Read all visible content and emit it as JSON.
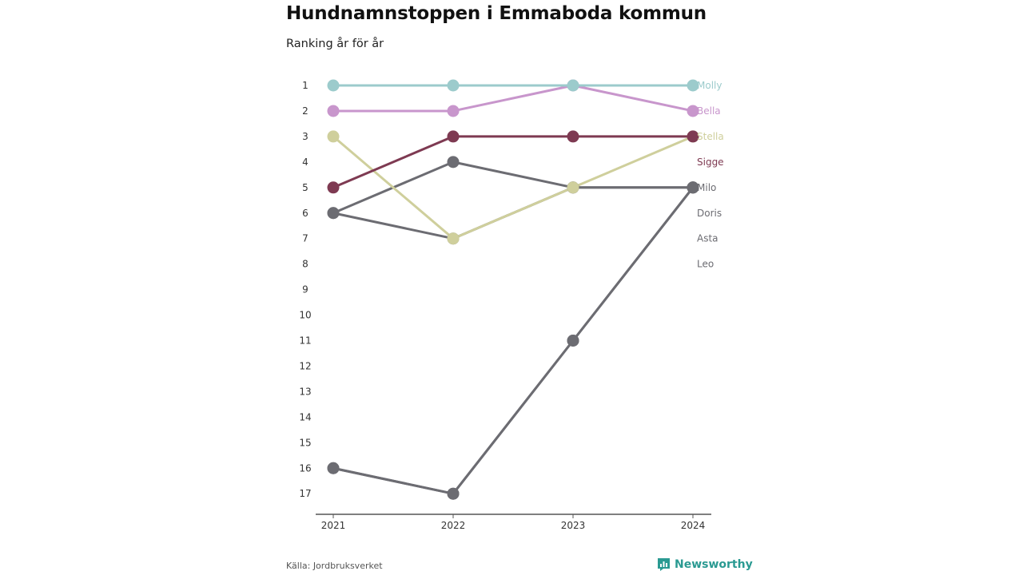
{
  "header": {
    "title": "Hundnamnstoppen i Emmaboda kommun",
    "subtitle": "Ranking år för år"
  },
  "footer": {
    "source": "Källa: Jordbruksverket",
    "brand": "Newsworthy",
    "brand_icon": "bar-chart-logo-icon"
  },
  "colors": {
    "Molly": "#9ccbcc",
    "Bella": "#c896cc",
    "Stella": "#cfcf9c",
    "Sigge": "#7e3a52",
    "Milo": "#6c6c72",
    "Doris": "#6c6c72",
    "Asta": "#6c6c72",
    "Leo": "#6c6c72",
    "axis": "#555555",
    "brand": "#2a9a92"
  },
  "chart_data": {
    "type": "line",
    "x": [
      "2021",
      "2022",
      "2023",
      "2024"
    ],
    "yticks": [
      "1",
      "2",
      "3",
      "4",
      "5",
      "6",
      "7",
      "8",
      "9",
      "10",
      "11",
      "12",
      "13",
      "14",
      "15",
      "16",
      "17"
    ],
    "ylim": [
      1,
      17
    ],
    "y_reversed": true,
    "grid": false,
    "series": [
      {
        "name": "Leo",
        "values": [
          16,
          17,
          11,
          5
        ]
      },
      {
        "name": "Asta",
        "values": [
          6,
          7,
          5,
          5
        ]
      },
      {
        "name": "Doris",
        "values": [
          6,
          4,
          5,
          5
        ]
      },
      {
        "name": "Milo",
        "values": [
          16,
          17,
          11,
          5
        ]
      },
      {
        "name": "Stella",
        "values": [
          3,
          7,
          5,
          3
        ]
      },
      {
        "name": "Sigge",
        "values": [
          5,
          3,
          3,
          3
        ]
      },
      {
        "name": "Bella",
        "values": [
          2,
          2,
          1,
          2
        ]
      },
      {
        "name": "Molly",
        "values": [
          1,
          1,
          1,
          1
        ]
      }
    ],
    "end_labels": [
      {
        "name": "Molly",
        "rank": 1
      },
      {
        "name": "Bella",
        "rank": 2
      },
      {
        "name": "Stella",
        "rank": 3
      },
      {
        "name": "Sigge",
        "rank": 4
      },
      {
        "name": "Milo",
        "rank": 5
      },
      {
        "name": "Doris",
        "rank": 6
      },
      {
        "name": "Asta",
        "rank": 7
      },
      {
        "name": "Leo",
        "rank": 8
      }
    ]
  }
}
